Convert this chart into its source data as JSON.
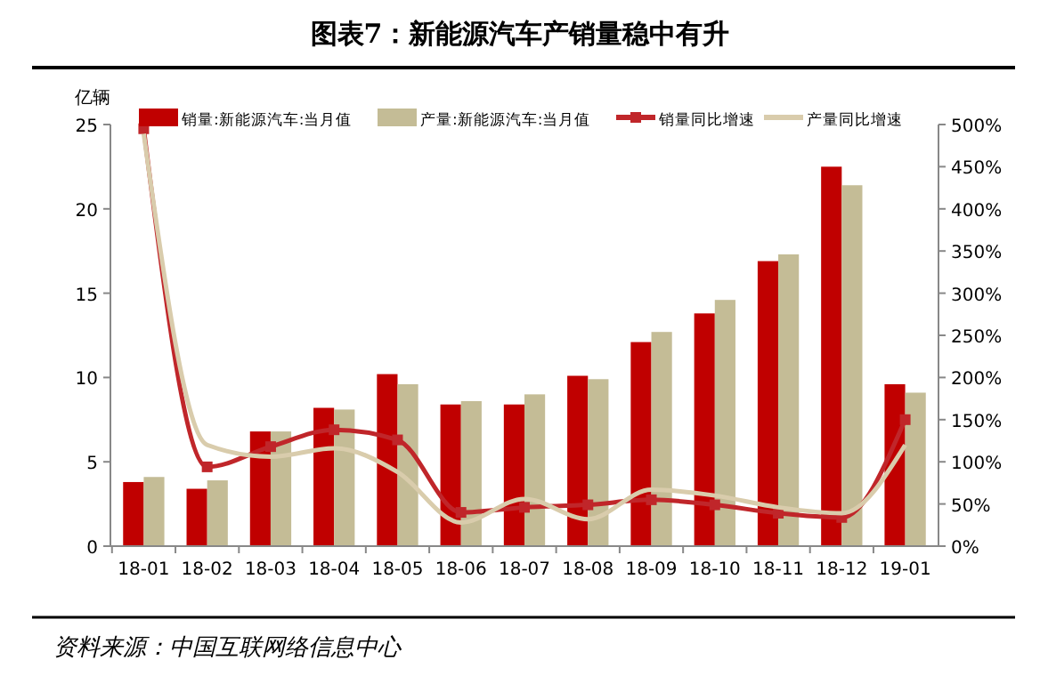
{
  "chart_data": {
    "type": "bar",
    "title": "图表7：新能源汽车产销量稳中有升",
    "ylabel": "亿辆",
    "categories": [
      "18-01",
      "18-02",
      "18-03",
      "18-04",
      "18-05",
      "18-06",
      "18-07",
      "18-08",
      "18-09",
      "18-10",
      "18-11",
      "18-12",
      "19-01"
    ],
    "series": [
      {
        "name": "销量:新能源汽车:当月值",
        "color": "#c00000",
        "values": [
          3.8,
          3.4,
          6.8,
          8.2,
          10.2,
          8.4,
          8.4,
          10.1,
          12.1,
          13.8,
          16.9,
          22.5,
          9.6
        ]
      },
      {
        "name": "产量:新能源汽车:当月值",
        "color": "#c4bc96",
        "values": [
          4.1,
          3.9,
          6.8,
          8.1,
          9.6,
          8.6,
          9.0,
          9.9,
          12.7,
          14.6,
          17.3,
          21.4,
          9.1
        ]
      },
      {
        "name": "销量同比增速",
        "type": "line",
        "axis": "y2",
        "marker": "square",
        "color": "#c0262a",
        "values": [
          495,
          94,
          118,
          138,
          126,
          40,
          46,
          49,
          55,
          49,
          39,
          34,
          150
        ]
      },
      {
        "name": "产量同比增速",
        "type": "line",
        "axis": "y2",
        "marker": "none",
        "color": "#d9ccac",
        "values": [
          489,
          120,
          106,
          116,
          88,
          28,
          56,
          32,
          67,
          60,
          46,
          39,
          120
        ]
      }
    ],
    "ylim": [
      0,
      25
    ],
    "yticks": [
      0,
      5,
      10,
      15,
      20,
      25
    ],
    "y2lim": [
      0,
      500
    ],
    "y2ticks": [
      {
        "value": 0,
        "label": "0%"
      },
      {
        "value": 50,
        "label": "50%"
      },
      {
        "value": 100,
        "label": "100%"
      },
      {
        "value": 150,
        "label": "150%"
      },
      {
        "value": 200,
        "label": "200%"
      },
      {
        "value": 250,
        "label": "250%"
      },
      {
        "value": 300,
        "label": "300%"
      },
      {
        "value": 350,
        "label": "350%"
      },
      {
        "value": 400,
        "label": "400%"
      },
      {
        "value": 450,
        "label": "450%"
      },
      {
        "value": 500,
        "label": "500%"
      }
    ],
    "legend": "top",
    "grid": false,
    "annotations": [
      "资料来源：中国互联网络信息中心"
    ]
  }
}
